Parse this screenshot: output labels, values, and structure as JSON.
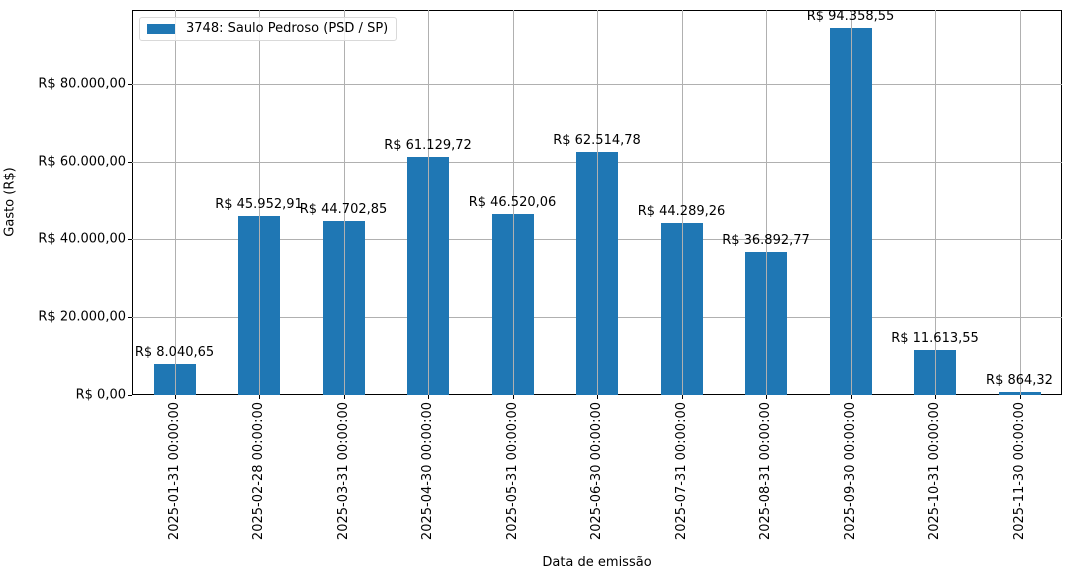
{
  "chart_data": {
    "type": "bar",
    "title": "",
    "xlabel": "Data de emissão",
    "ylabel": "Gasto (R$)",
    "ylim": [
      0,
      99000
    ],
    "grid": true,
    "legend_position": "upper left",
    "categories": [
      "2025-01-31 00:00:00",
      "2025-02-28 00:00:00",
      "2025-03-31 00:00:00",
      "2025-04-30 00:00:00",
      "2025-05-31 00:00:00",
      "2025-06-30 00:00:00",
      "2025-07-31 00:00:00",
      "2025-08-31 00:00:00",
      "2025-09-30 00:00:00",
      "2025-10-31 00:00:00",
      "2025-11-30 00:00:00"
    ],
    "series": [
      {
        "name": "3748: Saulo Pedroso (PSD / SP)",
        "color": "#1f77b4",
        "values": [
          8040.65,
          45952.91,
          44702.85,
          61129.72,
          46520.06,
          62514.78,
          44289.26,
          36892.77,
          94358.55,
          11613.55,
          864.32
        ],
        "labels": [
          "R$ 8.040,65",
          "R$ 45.952,91",
          "R$ 44.702,85",
          "R$ 61.129,72",
          "R$ 46.520,06",
          "R$ 62.514,78",
          "R$ 44.289,26",
          "R$ 36.892,77",
          "R$ 94.358,55",
          "R$ 11.613,55",
          "R$ 864,32"
        ]
      }
    ],
    "yticks": [
      {
        "value": 0,
        "label": "R$ 0,00"
      },
      {
        "value": 20000,
        "label": "R$ 20.000,00"
      },
      {
        "value": 40000,
        "label": "R$ 40.000,00"
      },
      {
        "value": 60000,
        "label": "R$ 60.000,00"
      },
      {
        "value": 80000,
        "label": "R$ 80.000,00"
      }
    ]
  }
}
